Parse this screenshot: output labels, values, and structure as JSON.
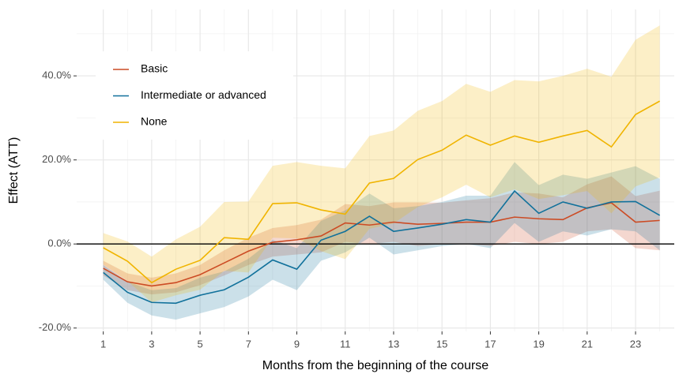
{
  "chart_data": {
    "type": "line",
    "x_label": "Months from the beginning of the course",
    "y_label": "Effect (ATT)",
    "x": [
      1,
      2,
      3,
      4,
      5,
      6,
      7,
      8,
      9,
      10,
      11,
      12,
      13,
      14,
      15,
      16,
      17,
      18,
      19,
      20,
      21,
      22,
      23,
      24
    ],
    "series": [
      {
        "name": "Basic",
        "color": "#cc4b24",
        "values": [
          -5.8,
          -9,
          -10,
          -9.2,
          -7.3,
          -4.5,
          -1.7,
          0.4,
          1,
          1.9,
          5,
          4.5,
          5.2,
          4.7,
          4.9,
          5.2,
          5.2,
          6.4,
          6,
          5.8,
          8.6,
          9.8,
          5.2,
          5.6
        ],
        "lower": [
          -7.5,
          -11,
          -12,
          -11.5,
          -9.8,
          -7.5,
          -5,
          -3,
          -2.5,
          -2,
          0.5,
          0,
          0.5,
          -0.5,
          0,
          0,
          -0.5,
          0.5,
          0,
          0.5,
          3,
          3.5,
          -1,
          -1.5
        ],
        "upper": [
          -4,
          -7,
          -8,
          -7,
          -5,
          -1.5,
          1.5,
          3.8,
          4.5,
          5.8,
          9.5,
          9,
          9.9,
          9.9,
          9.8,
          10.4,
          10.9,
          12.3,
          12,
          11.1,
          14.2,
          16.1,
          11.4,
          12.7
        ]
      },
      {
        "name": "Intermediate or advanced",
        "color": "#11719b",
        "values": [
          -6.8,
          -11.5,
          -13.9,
          -14.1,
          -12.2,
          -10.9,
          -7.9,
          -3.8,
          -6,
          0.9,
          3,
          6.6,
          3,
          3.8,
          4.7,
          5.8,
          5.2,
          12.6,
          7.3,
          10,
          8.5,
          10,
          10.1,
          6.8
        ],
        "lower": [
          -8.5,
          -14,
          -17,
          -18,
          -16.5,
          -15,
          -12.5,
          -8.5,
          -11,
          -4,
          -2,
          1.5,
          -2.5,
          -1.5,
          -0.5,
          0,
          -1,
          5,
          0.5,
          3,
          2,
          3.5,
          3,
          -1.5
        ],
        "upper": [
          -5,
          -9,
          -11,
          -10.5,
          -8,
          -6.5,
          -3.5,
          1,
          -1,
          5.5,
          8,
          12,
          8.5,
          9,
          10,
          11.5,
          11.5,
          19.5,
          14,
          16.5,
          15.5,
          17,
          18.5,
          15.5
        ]
      },
      {
        "name": "None",
        "color": "#f0b400",
        "values": [
          -0.9,
          -4.1,
          -9.2,
          -6,
          -3.9,
          1.5,
          1.1,
          9.6,
          9.8,
          8.1,
          7.1,
          14.5,
          15.6,
          20.1,
          22.3,
          25.9,
          23.5,
          25.7,
          24.2,
          25.7,
          27,
          23.1,
          30.8,
          34
        ],
        "lower": [
          -4.9,
          -8.8,
          -13.9,
          -12.2,
          -10.9,
          -6.4,
          -6.8,
          1.5,
          1.3,
          -1.7,
          -3.6,
          3.6,
          4.9,
          8.8,
          11.1,
          14.1,
          11.1,
          13,
          10.7,
          11.6,
          12.6,
          7.3,
          13.7,
          15.8
        ],
        "upper": [
          2.6,
          0.6,
          -3,
          1.1,
          4.1,
          10,
          10.1,
          18.6,
          19.5,
          18.6,
          18,
          25.7,
          27,
          31.7,
          34,
          38.1,
          36.2,
          39,
          38.7,
          40,
          41.7,
          39.8,
          48.6,
          52
        ]
      }
    ],
    "xlim": [
      -0.1,
      24.6
    ],
    "ylim": [
      -20.8,
      55.8
    ],
    "xticks": [
      1,
      3,
      5,
      7,
      9,
      11,
      13,
      15,
      17,
      19,
      21,
      23
    ],
    "minor_xticks": [
      2,
      4,
      6,
      8,
      10,
      12,
      14,
      16,
      18,
      20,
      22,
      24
    ],
    "yticks": [
      {
        "value": -20,
        "label": "-20.0%"
      },
      {
        "value": 0,
        "label": "0.0%"
      },
      {
        "value": 20,
        "label": "20.0%"
      },
      {
        "value": 40,
        "label": "40.0%"
      }
    ],
    "minor_yticks": [
      -10,
      10,
      30,
      50
    ],
    "reference_line": 0,
    "grid": true,
    "legend": "top-left"
  }
}
